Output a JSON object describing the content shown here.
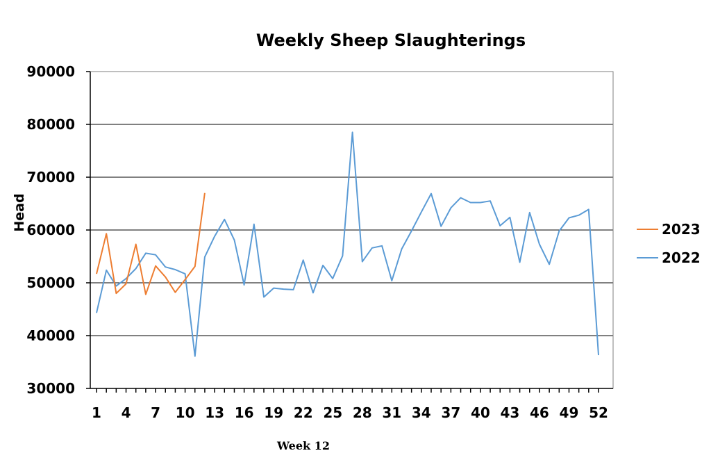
{
  "chart_data": {
    "type": "line",
    "title": "Weekly Sheep Slaughterings",
    "xlabel": "",
    "ylabel": "Head",
    "ylim": [
      30000,
      90000
    ],
    "yticks": [
      30000,
      40000,
      50000,
      60000,
      70000,
      80000,
      90000
    ],
    "ytick_labels": [
      "30000",
      "40000",
      "50000",
      "60000",
      "70000",
      "80000",
      "90000"
    ],
    "xlim": [
      1,
      52
    ],
    "xticks": [
      1,
      4,
      7,
      10,
      13,
      16,
      19,
      22,
      25,
      28,
      31,
      34,
      37,
      40,
      43,
      46,
      49,
      52
    ],
    "xtick_labels": [
      "1",
      "4",
      "7",
      "10",
      "13",
      "16",
      "19",
      "22",
      "25",
      "28",
      "31",
      "34",
      "37",
      "40",
      "43",
      "46",
      "49",
      "52"
    ],
    "grid": true,
    "legend_position": "right",
    "series": [
      {
        "name": "2023",
        "color": "#ED7D31",
        "x": [
          1,
          2,
          3,
          4,
          5,
          6,
          7,
          8,
          9,
          10,
          11,
          12
        ],
        "values": [
          51700,
          59300,
          48000,
          49800,
          57300,
          47800,
          53200,
          51100,
          48200,
          50600,
          53100,
          67000
        ]
      },
      {
        "name": "2022",
        "color": "#5B9BD5",
        "x": [
          1,
          2,
          3,
          4,
          5,
          6,
          7,
          8,
          9,
          10,
          11,
          12,
          13,
          14,
          15,
          16,
          17,
          18,
          19,
          20,
          21,
          22,
          23,
          24,
          25,
          26,
          27,
          28,
          29,
          30,
          31,
          32,
          33,
          34,
          35,
          36,
          37,
          38,
          39,
          40,
          41,
          42,
          43,
          44,
          45,
          46,
          47,
          48,
          49,
          50,
          51,
          52
        ],
        "values": [
          44300,
          52400,
          49400,
          50800,
          52700,
          55600,
          55300,
          53000,
          52500,
          51700,
          36100,
          54900,
          58800,
          62000,
          58100,
          49600,
          61100,
          47300,
          49000,
          48800,
          48700,
          54300,
          48100,
          53300,
          50800,
          55100,
          78500,
          54000,
          56600,
          57000,
          50400,
          56400,
          59800,
          63400,
          66900,
          60700,
          64200,
          66100,
          65200,
          65200,
          65500,
          60800,
          62400,
          53900,
          63300,
          57300,
          53500,
          59800,
          62300,
          62800,
          63900,
          36300
        ]
      }
    ],
    "legend_order": [
      0,
      1
    ]
  },
  "footer_note": "Week 12"
}
